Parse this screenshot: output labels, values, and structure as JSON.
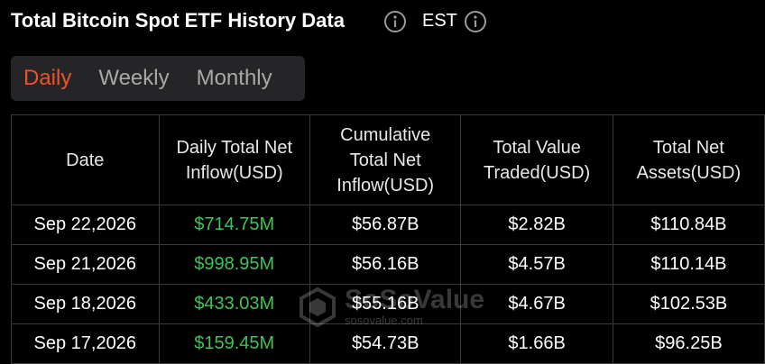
{
  "header": {
    "title": "Total Bitcoin Spot ETF History Data",
    "timezone": "EST"
  },
  "tabs": [
    "Daily",
    "Weekly",
    "Monthly"
  ],
  "active_tab": 0,
  "table": {
    "columns": [
      "Date",
      "Daily Total Net Inflow(USD)",
      "Cumulative Total Net Inflow(USD)",
      "Total Value Traded(USD)",
      "Total Net Assets(USD)"
    ],
    "rows": [
      [
        "Sep 22,2026",
        "$714.75M",
        "$56.87B",
        "$2.82B",
        "$110.84B"
      ],
      [
        "Sep 21,2026",
        "$998.95M",
        "$56.16B",
        "$4.57B",
        "$110.14B"
      ],
      [
        "Sep 18,2026",
        "$433.03M",
        "$55.16B",
        "$4.67B",
        "$102.53B"
      ],
      [
        "Sep 17,2026",
        "$159.45M",
        "$54.73B",
        "$1.66B",
        "$96.25B"
      ]
    ]
  },
  "watermark": {
    "name": "SoSoValue",
    "url": "sosovalue.com"
  }
}
